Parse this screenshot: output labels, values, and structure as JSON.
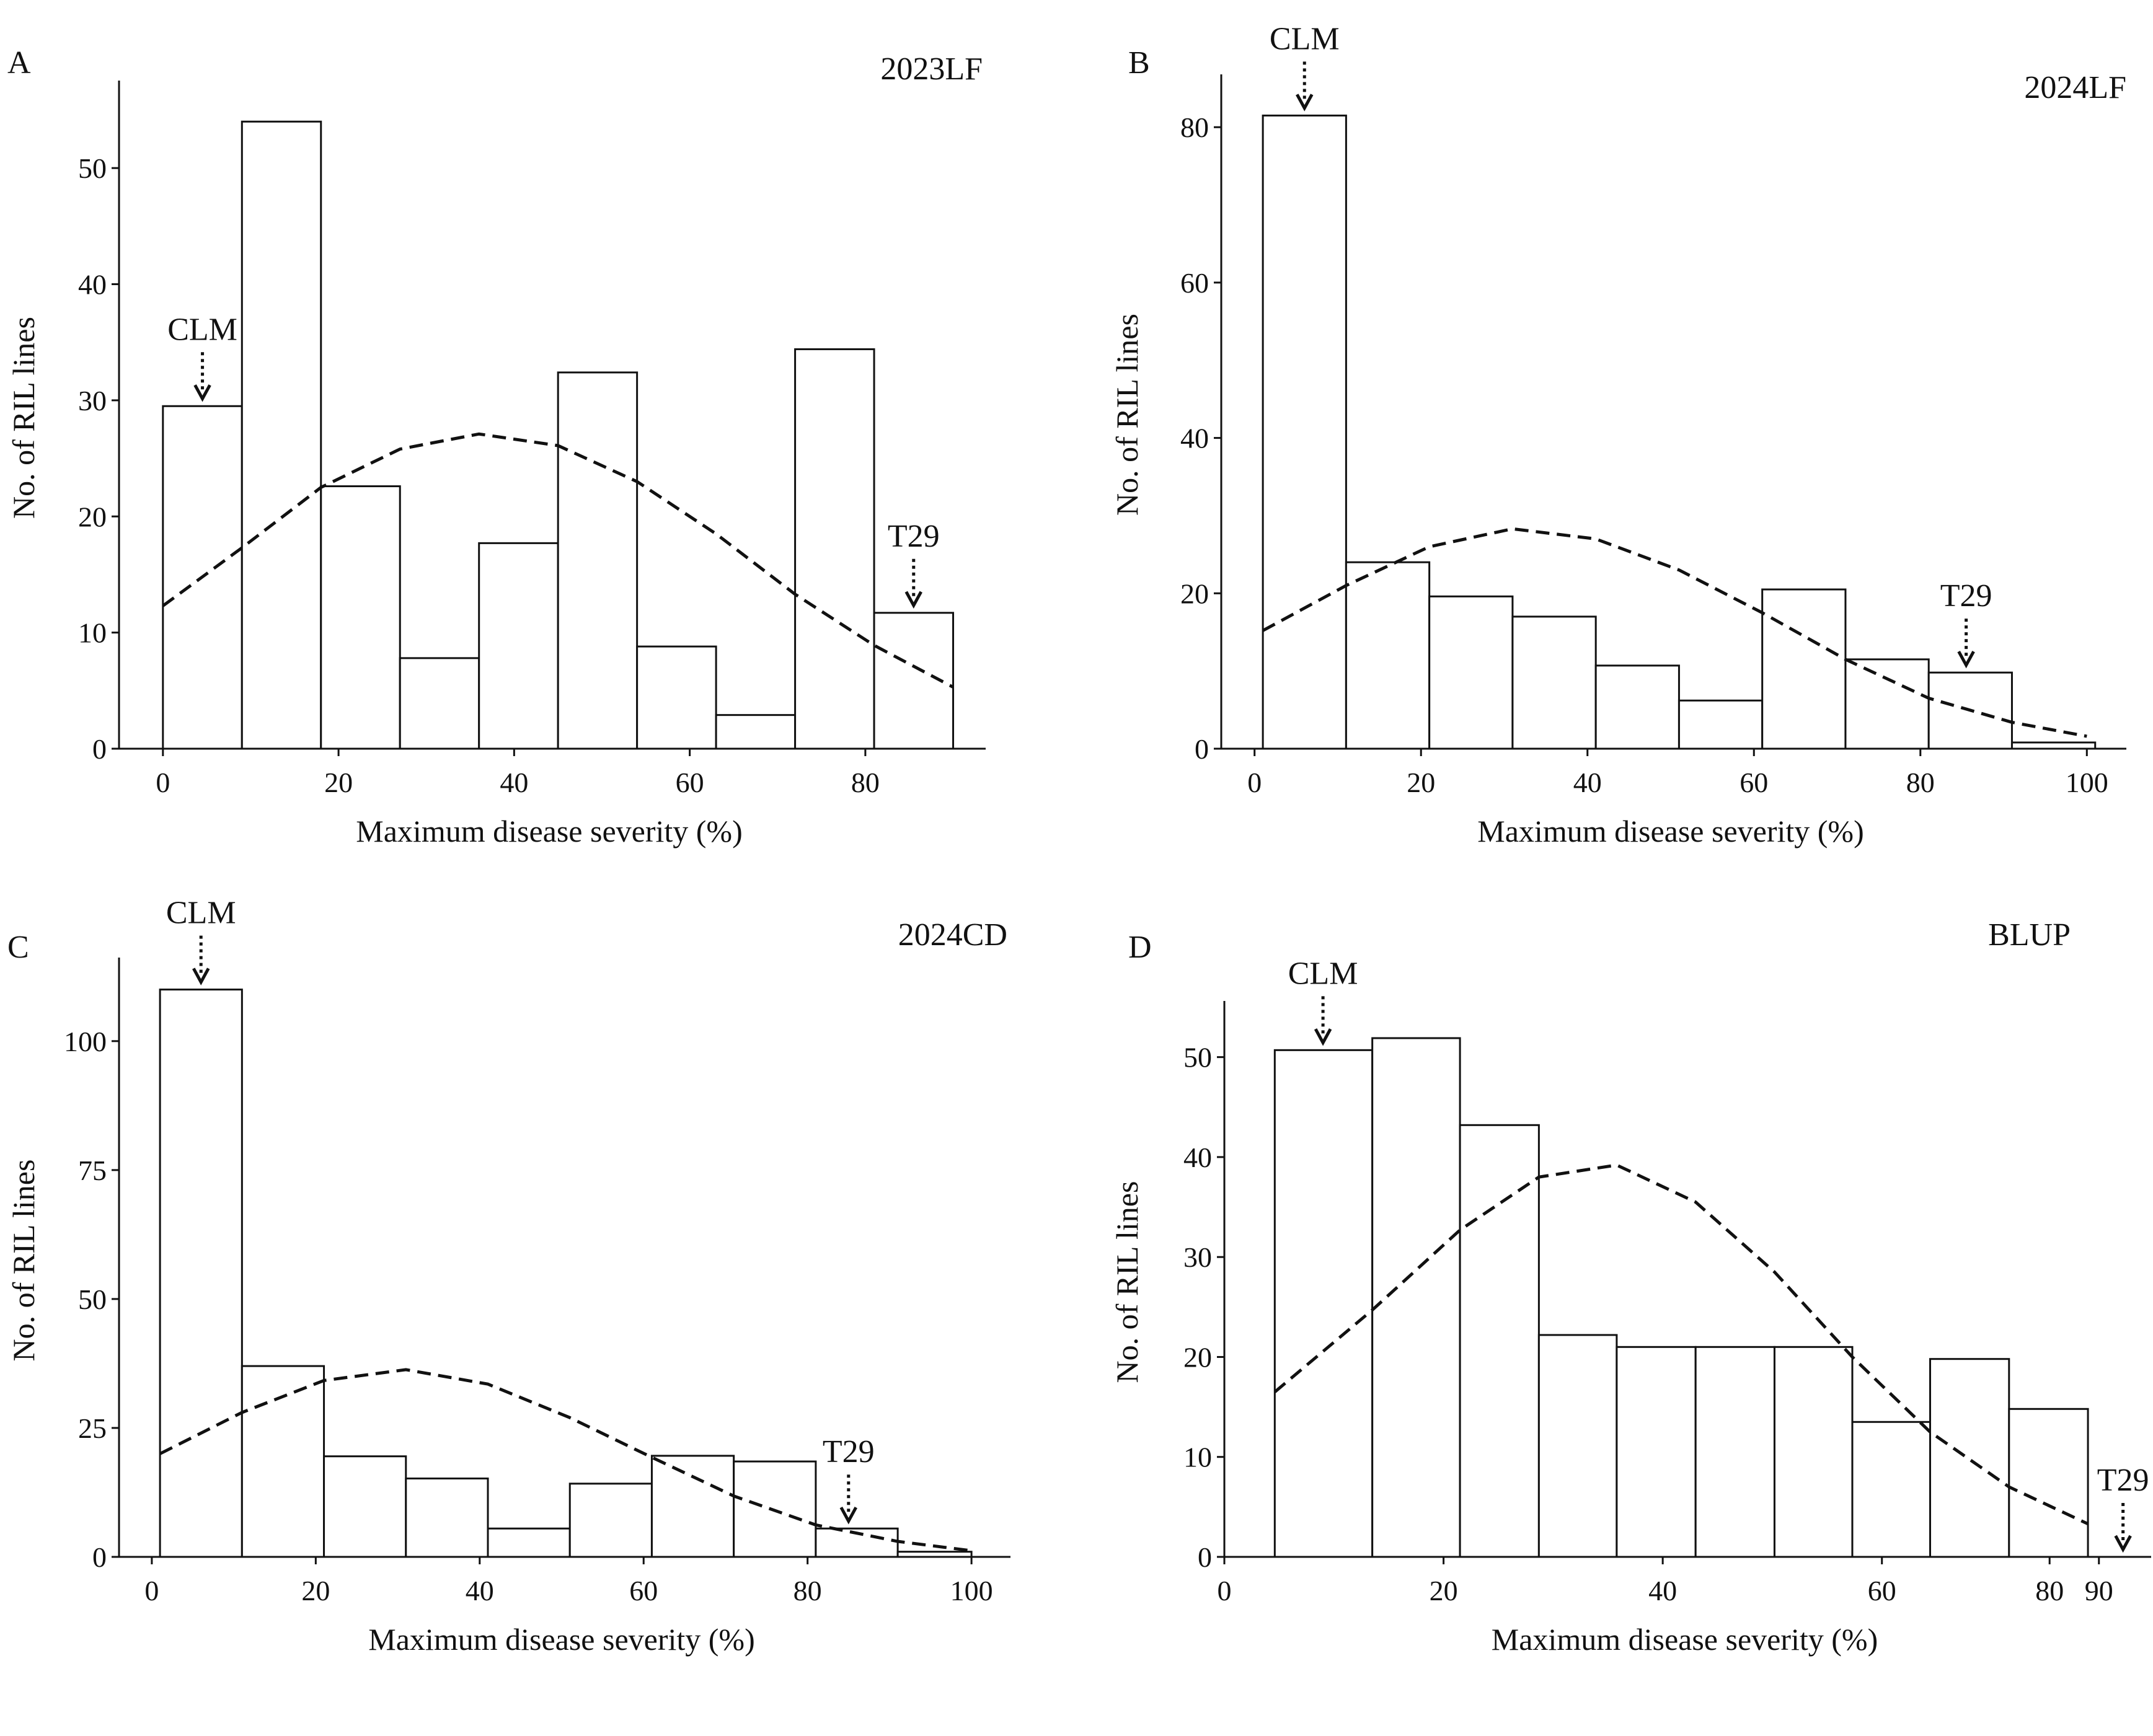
{
  "chart_data": [
    {
      "panel": "A",
      "type": "bar",
      "title": "2023LF",
      "xlabel": "Maximum disease severity (%)",
      "ylabel": "No. of RIL lines",
      "xlim": [
        -5,
        93
      ],
      "ylim": [
        0,
        57
      ],
      "xticks": [
        0,
        20,
        40,
        60,
        80
      ],
      "xtick_labels": [
        "0",
        "20",
        "40",
        "60",
        "80"
      ],
      "yticks": [
        0,
        10,
        20,
        30,
        40,
        50
      ],
      "yticks_labels": [
        "0",
        "10",
        "20",
        "30",
        "40",
        "50"
      ],
      "bin_edges": [
        0,
        9,
        18,
        27,
        36,
        45,
        54,
        63,
        72,
        81,
        90
      ],
      "values": [
        29.5,
        54,
        22.6,
        7.8,
        17.7,
        32.4,
        8.8,
        2.9,
        34.4,
        11.7
      ],
      "fit_curve": {
        "x": [
          0,
          9,
          18,
          27,
          36,
          45,
          54,
          63,
          72,
          81,
          90
        ],
        "y": [
          12.3,
          17.3,
          22.5,
          25.8,
          27.1,
          26.1,
          23,
          18.5,
          13.3,
          8.9,
          5.3
        ]
      },
      "annotations": [
        {
          "label": "CLM",
          "x": 4.5,
          "y": 29.5
        },
        {
          "label": "T29",
          "x": 85.5,
          "y": 11.7
        }
      ]
    },
    {
      "panel": "B",
      "type": "bar",
      "title": "2024LF",
      "xlabel": "Maximum disease severity (%)",
      "ylabel": "No. of RIL lines",
      "xlim": [
        -4,
        104
      ],
      "ylim": [
        0,
        86
      ],
      "xticks": [
        0,
        20,
        40,
        60,
        80,
        100
      ],
      "xtick_labels": [
        "0",
        "20",
        "40",
        "60",
        "80",
        "100"
      ],
      "yticks": [
        0,
        20,
        40,
        60,
        80
      ],
      "yticks_labels": [
        "0",
        "20",
        "40",
        "60",
        "80"
      ],
      "bin_edges": [
        1,
        11,
        21,
        31,
        41,
        51,
        61,
        71,
        81,
        91,
        101
      ],
      "values": [
        81.5,
        24,
        19.6,
        17,
        10.7,
        6.2,
        20.5,
        11.5,
        9.8,
        0.8
      ],
      "fit_curve": {
        "x": [
          1,
          11,
          21,
          31,
          41,
          51,
          61,
          71,
          81,
          91,
          100
        ],
        "y": [
          15.2,
          21,
          26,
          28.3,
          27,
          23,
          17.5,
          11.5,
          6.5,
          3.4,
          1.6
        ]
      },
      "annotations": [
        {
          "label": "CLM",
          "x": 6,
          "y": 81.5
        },
        {
          "label": "T29",
          "x": 85.5,
          "y": 9.8
        }
      ]
    },
    {
      "panel": "C",
      "type": "bar",
      "title": "2024CD",
      "xlabel": "Maximum disease severity (%)",
      "ylabel": "No. of RIL lines",
      "xlim": [
        -4,
        104
      ],
      "ylim": [
        0,
        115
      ],
      "xticks": [
        0,
        20,
        40,
        60,
        80,
        100
      ],
      "xtick_labels": [
        "0",
        "20",
        "40",
        "60",
        "80",
        "100"
      ],
      "yticks": [
        0,
        25,
        50,
        75,
        100
      ],
      "yticks_labels": [
        "0",
        "25",
        "50",
        "75",
        "100"
      ],
      "bin_edges": [
        1,
        11,
        21,
        31,
        41,
        51,
        61,
        71,
        81,
        91,
        100
      ],
      "values": [
        110,
        37,
        19.5,
        15.2,
        5.5,
        14.2,
        19.6,
        18.5,
        5.5,
        1
      ],
      "fit_curve": {
        "x": [
          1,
          11,
          21,
          31,
          41,
          51,
          61,
          71,
          81,
          91,
          100
        ],
        "y": [
          20,
          28,
          34.2,
          36.3,
          33.5,
          27,
          19.3,
          11.8,
          6.2,
          3,
          1.2
        ]
      },
      "annotations": [
        {
          "label": "CLM",
          "x": 6,
          "y": 110
        },
        {
          "label": "T29",
          "x": 85,
          "y": 5.5
        }
      ]
    },
    {
      "panel": "D",
      "type": "bar",
      "title": "BLUP",
      "xlabel": "Maximum disease severity (%)",
      "ylabel": "No. of RIL lines",
      "xlim": [
        0,
        84
      ],
      "ylim": [
        0,
        55
      ],
      "xticks": [
        0,
        20,
        40,
        60,
        75.3,
        79.8
      ],
      "xtick_labels": [
        "0",
        "20",
        "40",
        "60",
        "80",
        "90"
      ],
      "yticks": [
        0,
        10,
        20,
        30,
        40,
        50
      ],
      "yticks_labels": [
        "0",
        "10",
        "20",
        "30",
        "40",
        "50"
      ],
      "bin_edges": [
        4.6,
        13.5,
        21.5,
        28.7,
        35.8,
        43,
        50.2,
        57.3,
        64.4,
        71.6,
        78.8
      ],
      "values": [
        50.7,
        51.9,
        43.2,
        22.2,
        21,
        21,
        21,
        13.5,
        19.8,
        14.8
      ],
      "fit_curve": {
        "x": [
          4.6,
          13.5,
          21.5,
          28.7,
          35.8,
          43,
          50.2,
          57.3,
          64.4,
          71.6,
          78.8
        ],
        "y": [
          16.5,
          24.7,
          32.7,
          38,
          39.2,
          35.5,
          28.5,
          20,
          12.5,
          7,
          3.3
        ]
      },
      "annotations": [
        {
          "label": "CLM",
          "x": 9,
          "y": 50.7
        },
        {
          "label": "T29",
          "x": 82,
          "y": 0
        }
      ]
    }
  ]
}
